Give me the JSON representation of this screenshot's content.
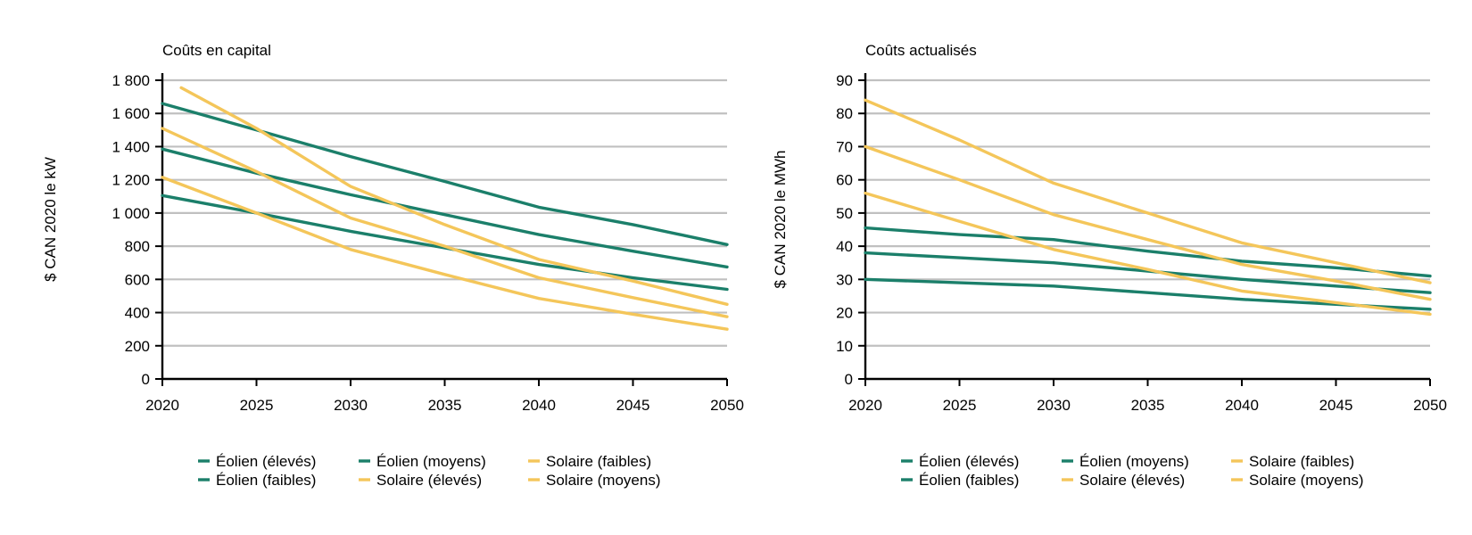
{
  "colors": {
    "wind": "#1b7f6a",
    "solar": "#f4c65a",
    "grid": "#c0c0c0",
    "axis": "#000000"
  },
  "chart_data": [
    {
      "type": "line",
      "title": "Coûts en capital",
      "ylabel": "$ CAN 2020 le kW",
      "xlabel": "",
      "xlim": [
        2020,
        2050
      ],
      "ylim": [
        0,
        1800
      ],
      "xticks": [
        2020,
        2025,
        2030,
        2035,
        2040,
        2045,
        2050
      ],
      "yticks": [
        0,
        200,
        400,
        600,
        800,
        1000,
        1200,
        1400,
        1600,
        1800
      ],
      "ytick_labels": [
        "0",
        "200",
        "400",
        "600",
        "800",
        "1 000",
        "1 200",
        "1 400",
        "1 600",
        "1 800"
      ],
      "grid": true,
      "legend_position": "bottom",
      "series": [
        {
          "name": "Éolien (élevés)",
          "color": "#1b7f6a",
          "x": [
            2020,
            2025,
            2030,
            2035,
            2040,
            2045,
            2050
          ],
          "y": [
            1660,
            1500,
            1340,
            1190,
            1035,
            930,
            810
          ]
        },
        {
          "name": "Éolien (faibles)",
          "color": "#1b7f6a",
          "x": [
            2020,
            2025,
            2030,
            2035,
            2040,
            2045,
            2050
          ],
          "y": [
            1105,
            1000,
            890,
            790,
            690,
            610,
            540
          ]
        },
        {
          "name": "Éolien (moyens)",
          "color": "#1b7f6a",
          "x": [
            2020,
            2025,
            2030,
            2035,
            2040,
            2045,
            2050
          ],
          "y": [
            1385,
            1240,
            1110,
            990,
            870,
            770,
            675
          ]
        },
        {
          "name": "Solaire (élevés)",
          "color": "#f4c65a",
          "x": [
            2021,
            2025,
            2030,
            2035,
            2040,
            2045,
            2050
          ],
          "y": [
            1755,
            1510,
            1160,
            930,
            720,
            590,
            450
          ]
        },
        {
          "name": "Solaire (faibles)",
          "color": "#f4c65a",
          "x": [
            2020,
            2025,
            2030,
            2035,
            2040,
            2045,
            2050
          ],
          "y": [
            1215,
            1000,
            780,
            630,
            485,
            390,
            300
          ]
        },
        {
          "name": "Solaire (moyens)",
          "color": "#f4c65a",
          "x": [
            2020,
            2025,
            2030,
            2035,
            2040,
            2045,
            2050
          ],
          "y": [
            1510,
            1250,
            970,
            800,
            610,
            490,
            375
          ]
        }
      ]
    },
    {
      "type": "line",
      "title": "Coûts actualisés",
      "ylabel": "$ CAN 2020 le MWh",
      "xlabel": "",
      "xlim": [
        2020,
        2050
      ],
      "ylim": [
        0,
        90
      ],
      "xticks": [
        2020,
        2025,
        2030,
        2035,
        2040,
        2045,
        2050
      ],
      "yticks": [
        0,
        10,
        20,
        30,
        40,
        50,
        60,
        70,
        80,
        90
      ],
      "ytick_labels": [
        "0",
        "10",
        "20",
        "30",
        "40",
        "50",
        "60",
        "70",
        "80",
        "90"
      ],
      "grid": true,
      "legend_position": "bottom",
      "series": [
        {
          "name": "Éolien (élevés)",
          "color": "#1b7f6a",
          "x": [
            2020,
            2025,
            2030,
            2035,
            2040,
            2045,
            2050
          ],
          "y": [
            45.5,
            43.5,
            42,
            38.5,
            35.5,
            33.5,
            31
          ]
        },
        {
          "name": "Éolien (faibles)",
          "color": "#1b7f6a",
          "x": [
            2020,
            2025,
            2030,
            2035,
            2040,
            2045,
            2050
          ],
          "y": [
            30,
            29,
            28,
            26,
            24,
            22.5,
            21
          ]
        },
        {
          "name": "Éolien (moyens)",
          "color": "#1b7f6a",
          "x": [
            2020,
            2025,
            2030,
            2035,
            2040,
            2045,
            2050
          ],
          "y": [
            38,
            36.5,
            35,
            32.5,
            30,
            28,
            26
          ]
        },
        {
          "name": "Solaire (élevés)",
          "color": "#f4c65a",
          "x": [
            2020,
            2025,
            2030,
            2035,
            2040,
            2045,
            2050
          ],
          "y": [
            84,
            72,
            59,
            50,
            41,
            35,
            29
          ]
        },
        {
          "name": "Solaire (faibles)",
          "color": "#f4c65a",
          "x": [
            2020,
            2025,
            2030,
            2035,
            2040,
            2045,
            2050
          ],
          "y": [
            56,
            47.5,
            39,
            33,
            26.5,
            23,
            19.5
          ]
        },
        {
          "name": "Solaire (moyens)",
          "color": "#f4c65a",
          "x": [
            2020,
            2025,
            2030,
            2035,
            2040,
            2045,
            2050
          ],
          "y": [
            70,
            60,
            49.5,
            42,
            34.5,
            29.5,
            24
          ]
        }
      ]
    }
  ]
}
